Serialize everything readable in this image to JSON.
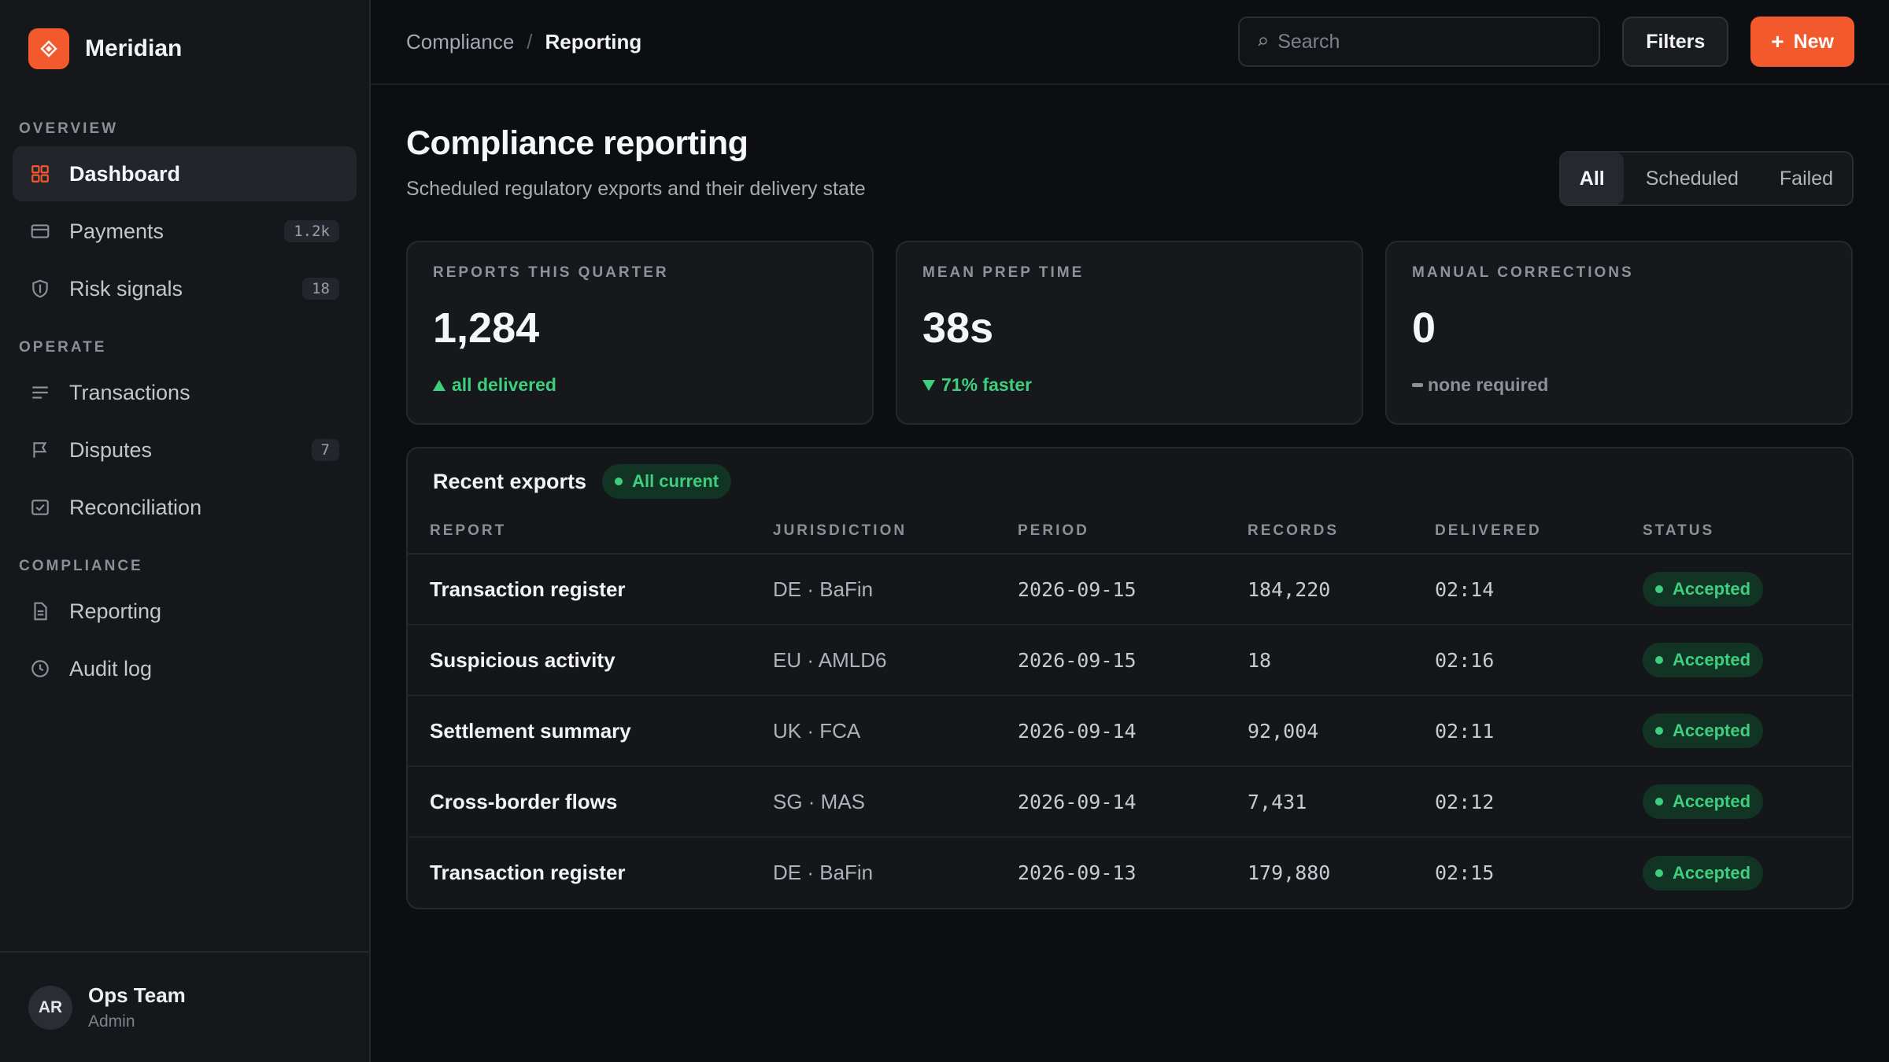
{
  "brand": {
    "name": "Meridian",
    "accent": "#f25a2e"
  },
  "sidebar": {
    "sections": [
      {
        "label": "OVERVIEW"
      },
      {
        "label": "OPERATE"
      },
      {
        "label": "COMPLIANCE"
      }
    ],
    "items": [
      {
        "label": "Dashboard",
        "icon": "grid-icon",
        "active": true
      },
      {
        "label": "Payments",
        "icon": "card-icon",
        "badge": "1.2k"
      },
      {
        "label": "Risk signals",
        "icon": "shield-icon",
        "badge": "18"
      },
      {
        "label": "Transactions",
        "icon": "list-icon"
      },
      {
        "label": "Disputes",
        "icon": "flag-icon",
        "badge": "7"
      },
      {
        "label": "Reconciliation",
        "icon": "check-square-icon"
      },
      {
        "label": "Reporting",
        "icon": "document-icon"
      },
      {
        "label": "Audit log",
        "icon": "clock-icon"
      }
    ]
  },
  "user": {
    "initials": "AR",
    "name": "Ops Team",
    "role": "Admin"
  },
  "topbar": {
    "breadcrumb": {
      "parent": "Compliance",
      "separator": "/",
      "current": "Reporting"
    },
    "search_placeholder": "Search",
    "filters_label": "Filters",
    "new_label": "New"
  },
  "page": {
    "title": "Compliance reporting",
    "subtitle": "Scheduled regulatory exports and their delivery state",
    "segments": [
      "All",
      "Scheduled",
      "Failed"
    ],
    "active_segment": "All"
  },
  "stats": [
    {
      "label": "REPORTS THIS QUARTER",
      "value": "1,284",
      "note": "all delivered",
      "trend": "up"
    },
    {
      "label": "MEAN PREP TIME",
      "value": "38s",
      "note": "71% faster",
      "trend": "down"
    },
    {
      "label": "MANUAL CORRECTIONS",
      "value": "0",
      "note": "none required",
      "trend": "flat"
    }
  ],
  "exports": {
    "title": "Recent exports",
    "pill": "All current",
    "columns": [
      "REPORT",
      "JURISDICTION",
      "PERIOD",
      "RECORDS",
      "DELIVERED",
      "STATUS"
    ],
    "rows": [
      {
        "report": "Transaction register",
        "jurisdiction": "DE · BaFin",
        "period": "2026-09-15",
        "records": "184,220",
        "delivered": "02:14",
        "status": "Accepted"
      },
      {
        "report": "Suspicious activity",
        "jurisdiction": "EU · AMLD6",
        "period": "2026-09-15",
        "records": "18",
        "delivered": "02:16",
        "status": "Accepted"
      },
      {
        "report": "Settlement summary",
        "jurisdiction": "UK · FCA",
        "period": "2026-09-14",
        "records": "92,004",
        "delivered": "02:11",
        "status": "Accepted"
      },
      {
        "report": "Cross-border flows",
        "jurisdiction": "SG · MAS",
        "period": "2026-09-14",
        "records": "7,431",
        "delivered": "02:12",
        "status": "Accepted"
      },
      {
        "report": "Transaction register",
        "jurisdiction": "DE · BaFin",
        "period": "2026-09-13",
        "records": "179,880",
        "delivered": "02:15",
        "status": "Accepted"
      }
    ]
  },
  "colors": {
    "success": "#3ecf7e",
    "background": "#0d0e11",
    "sidebar": "#15171b"
  }
}
